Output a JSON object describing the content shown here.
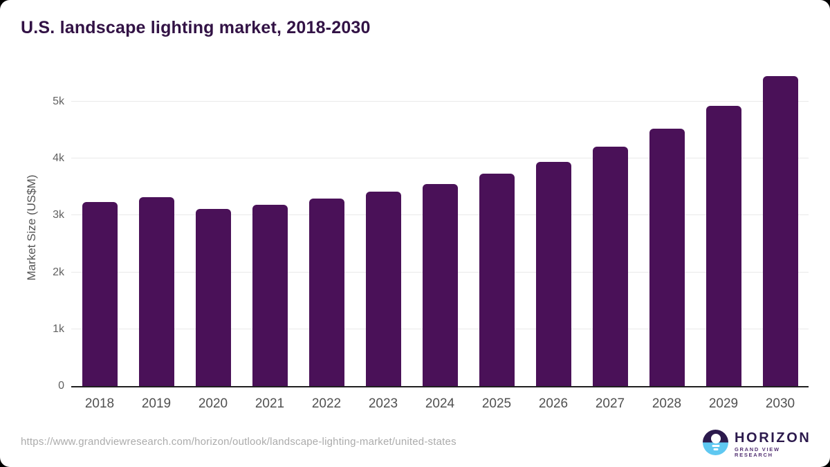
{
  "header": {
    "title": "U.S. landscape lighting market, 2018-2030"
  },
  "chart_data": {
    "type": "bar",
    "title": "U.S. landscape lighting market, 2018-2030",
    "categories": [
      "2018",
      "2019",
      "2020",
      "2021",
      "2022",
      "2023",
      "2024",
      "2025",
      "2026",
      "2027",
      "2028",
      "2029",
      "2030"
    ],
    "values": [
      3230,
      3325,
      3110,
      3190,
      3290,
      3415,
      3550,
      3730,
      3940,
      4205,
      4520,
      4925,
      5445
    ],
    "xlabel": "",
    "ylabel": "Market Size (US$M)",
    "ylim": [
      0,
      5570
    ],
    "yticks": [
      {
        "value": 0,
        "label": "0"
      },
      {
        "value": 1000,
        "label": "1k"
      },
      {
        "value": 2000,
        "label": "2k"
      },
      {
        "value": 3000,
        "label": "3k"
      },
      {
        "value": 4000,
        "label": "4k"
      },
      {
        "value": 5000,
        "label": "5k"
      }
    ],
    "grid": "horizontal",
    "legend": "none",
    "bar_color": "#4a1158"
  },
  "footer": {
    "source_url": "https://www.grandviewresearch.com/horizon/outlook/landscape-lighting-market/united-states",
    "logo": {
      "brand": "HORIZON",
      "subtitle": "GRAND VIEW RESEARCH",
      "mark": "sunrise-horizon-icon"
    }
  },
  "colors": {
    "bar": "#4a1158",
    "title_text": "#321245",
    "axis_line": "#1f1f1f",
    "gridline": "#e9e9e9",
    "tick_label": "#616161",
    "axis_title": "#555555",
    "url_text": "#ababab",
    "logo_navy": "#2c1a4d",
    "logo_blue": "#5fc8f1"
  }
}
